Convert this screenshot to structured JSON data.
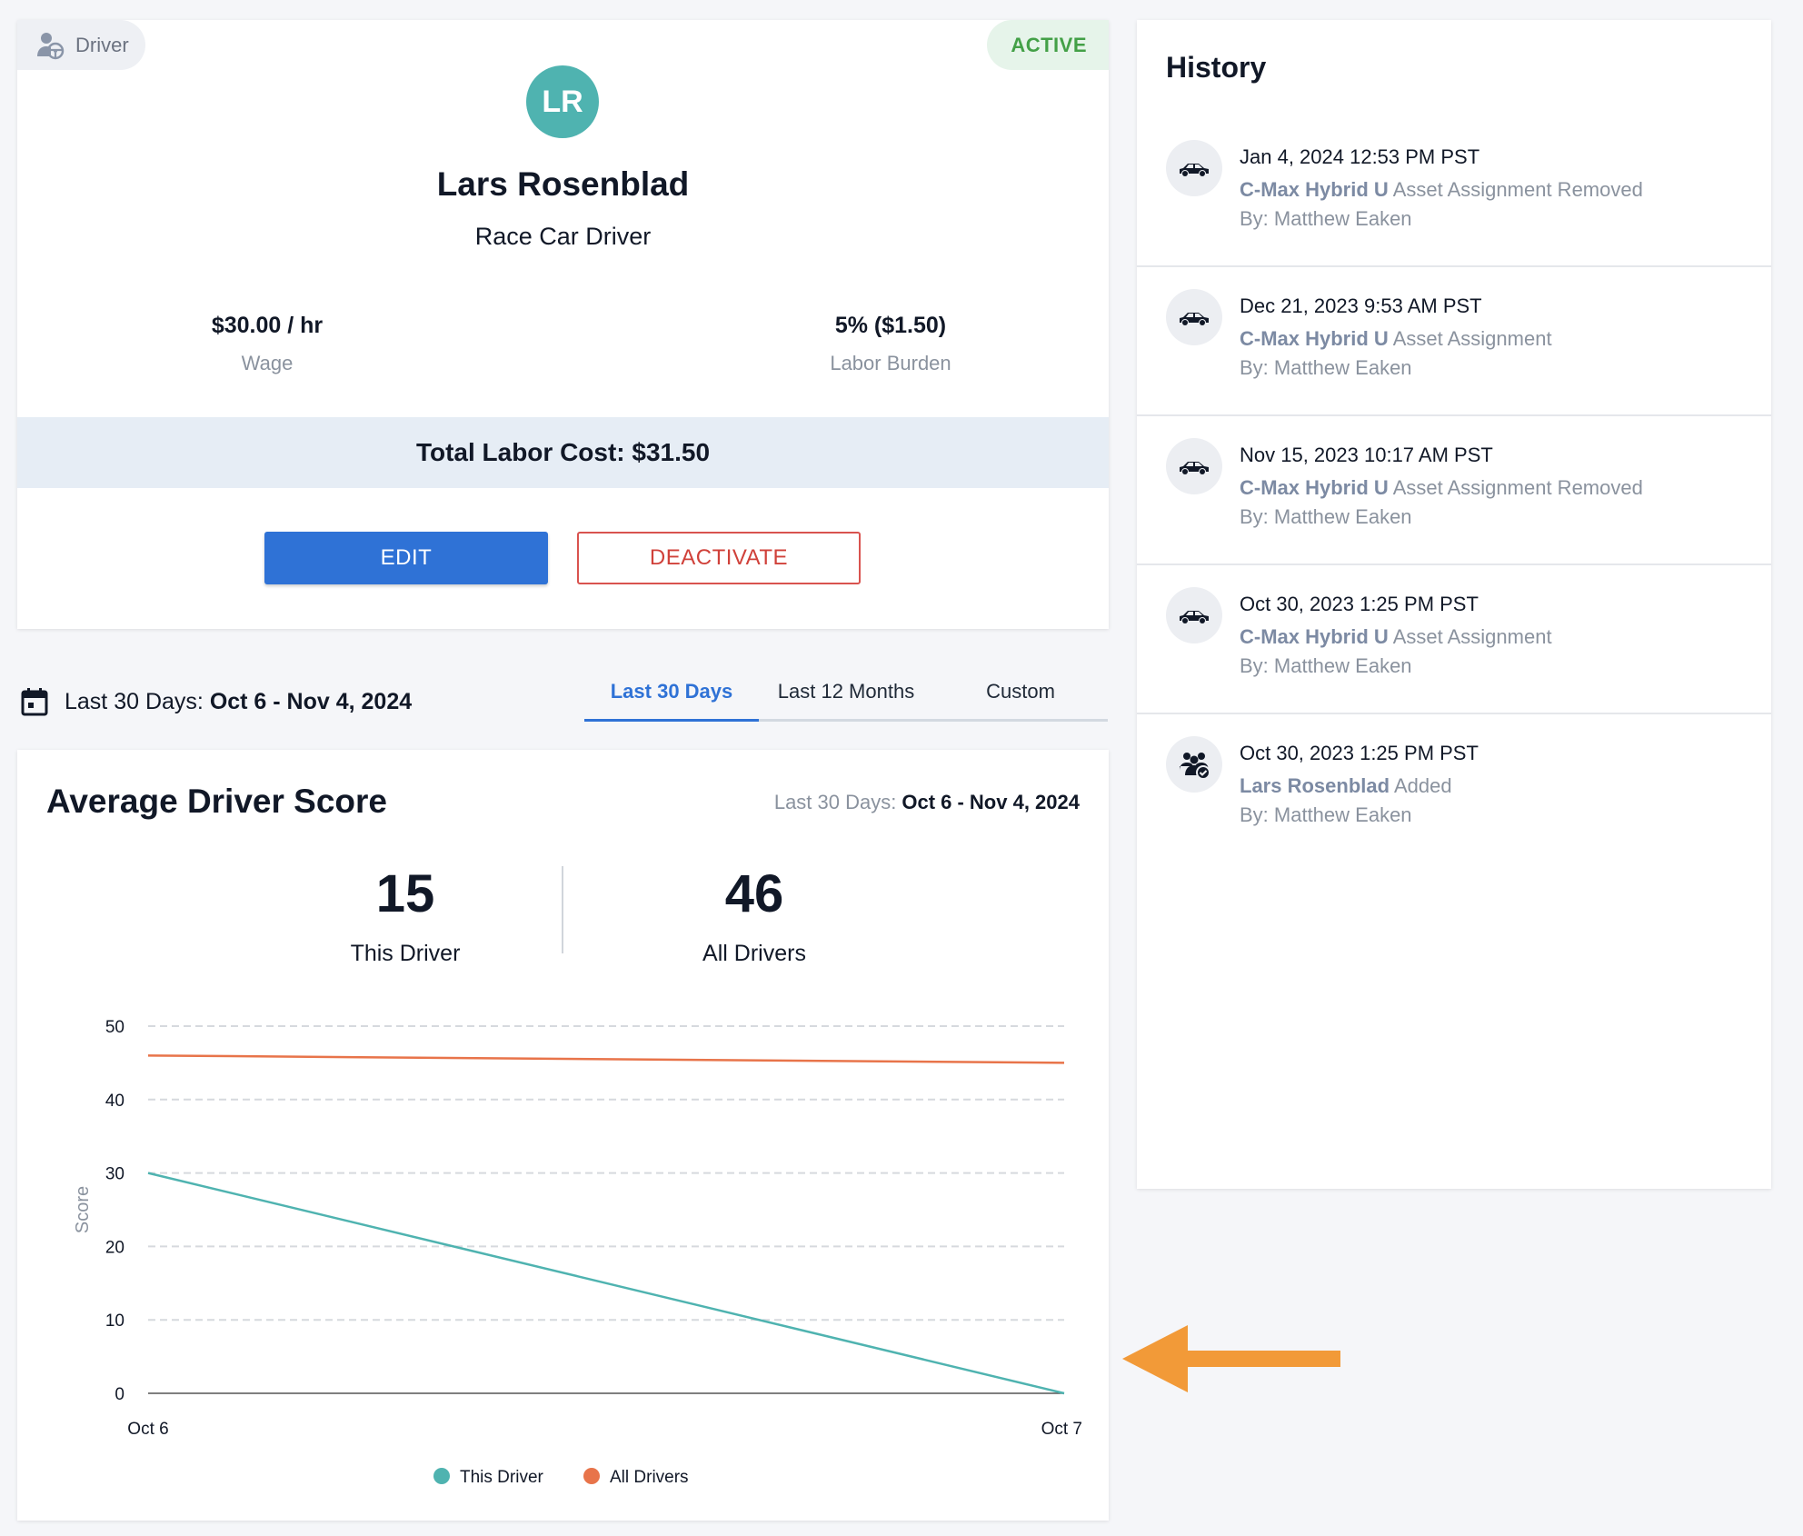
{
  "profile": {
    "role_label": "Driver",
    "status": "ACTIVE",
    "initials": "LR",
    "name": "Lars Rosenblad",
    "title": "Race Car Driver",
    "wage_value": "$30.00 / hr",
    "wage_label": "Wage",
    "burden_value": "5% ($1.50)",
    "burden_label": "Labor Burden",
    "total_labor_cost": "Total Labor Cost: $31.50",
    "edit_label": "EDIT",
    "deactivate_label": "DEACTIVATE"
  },
  "date_range": {
    "prefix": "Last 30 Days:",
    "value": "Oct 6 - Nov 4, 2024"
  },
  "tabs": [
    {
      "label": "Last 30 Days",
      "active": true
    },
    {
      "label": "Last 12 Months",
      "active": false
    },
    {
      "label": "Custom",
      "active": false
    }
  ],
  "score_card": {
    "title": "Average Driver Score",
    "range_prefix": "Last 30 Days:",
    "range_value": "Oct 6 - Nov 4, 2024",
    "this_driver_value": "15",
    "this_driver_label": "This Driver",
    "all_drivers_value": "46",
    "all_drivers_label": "All Drivers"
  },
  "chart_data": {
    "type": "line",
    "title": "",
    "xlabel": "",
    "ylabel": "Score",
    "x": [
      "Oct 6",
      "Oct 7"
    ],
    "ylim": [
      0,
      50
    ],
    "yticks": [
      0,
      10,
      20,
      30,
      40,
      50
    ],
    "grid": true,
    "legend_position": "bottom-center",
    "series": [
      {
        "name": "This Driver",
        "color": "#4fb3b0",
        "values": [
          30,
          0
        ]
      },
      {
        "name": "All Drivers",
        "color": "#e8744a",
        "values": [
          46,
          45
        ]
      }
    ]
  },
  "history": {
    "title": "History",
    "items": [
      {
        "icon": "car-icon",
        "date": "Jan 4, 2024 12:53 PM PST",
        "subject": "C-Max Hybrid U",
        "action": "Asset Assignment Removed",
        "by": "By: Matthew Eaken"
      },
      {
        "icon": "car-icon",
        "date": "Dec 21, 2023 9:53 AM PST",
        "subject": "C-Max Hybrid U",
        "action": "Asset Assignment",
        "by": "By: Matthew Eaken"
      },
      {
        "icon": "car-icon",
        "date": "Nov 15, 2023 10:17 AM PST",
        "subject": "C-Max Hybrid U",
        "action": "Asset Assignment Removed",
        "by": "By: Matthew Eaken"
      },
      {
        "icon": "car-icon",
        "date": "Oct 30, 2023 1:25 PM PST",
        "subject": "C-Max Hybrid U",
        "action": "Asset Assignment",
        "by": "By: Matthew Eaken"
      },
      {
        "icon": "people-check-icon",
        "date": "Oct 30, 2023 1:25 PM PST",
        "subject": "Lars Rosenblad",
        "action": "Added",
        "by": "By: Matthew Eaken"
      }
    ]
  },
  "colors": {
    "accent": "#2f72d6",
    "danger": "#d0413a",
    "active_green": "#43a047",
    "avatar_teal": "#4fb3b0",
    "annotation_arrow": "#f29a38"
  }
}
